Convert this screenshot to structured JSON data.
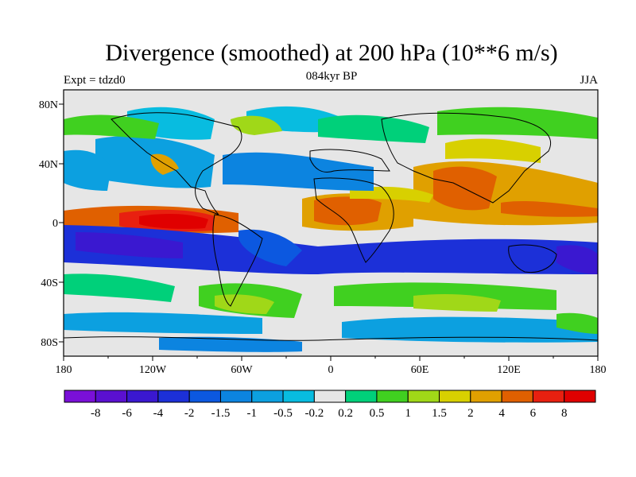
{
  "title": "Divergence (smoothed) at 200 hPa (10**6 m/s)",
  "subtitle": "084kyr BP",
  "left_label": "Expt = tdzd0",
  "right_label": "JJA",
  "lat_ticks": [
    "80N",
    "40N",
    "0",
    "40S",
    "80S"
  ],
  "lon_ticks": [
    "180",
    "120W",
    "60W",
    "0",
    "60E",
    "120E",
    "180"
  ],
  "colorbar": {
    "labels": [
      "-8",
      "-6",
      "-4",
      "-2",
      "-1.5",
      "-1",
      "-0.5",
      "-0.2",
      "0.2",
      "0.5",
      "1",
      "1.5",
      "2",
      "4",
      "6",
      "8"
    ],
    "colors": [
      "#7a10d8",
      "#5a10d0",
      "#3a18d0",
      "#1c30d8",
      "#0c58e0",
      "#0c84e0",
      "#0ca0e0",
      "#08bce0",
      "#e6e6e6",
      "#00d07a",
      "#40d020",
      "#a0d818",
      "#d8d000",
      "#e0a000",
      "#e06000",
      "#e82010",
      "#e00000"
    ]
  }
}
